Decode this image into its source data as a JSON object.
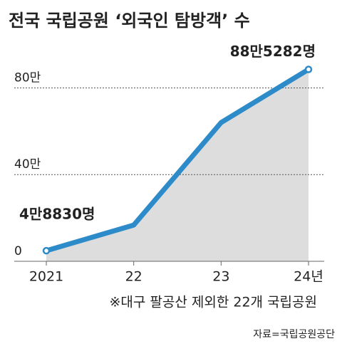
{
  "chart_data": {
    "type": "line",
    "title": "전국 국립공원 ‘외국인 탐방객’ 수",
    "note": "※대구 팔공산 제외한 22개 국립공원",
    "source": "자료=국립공원공단",
    "categories": [
      "2021",
      "22",
      "23",
      "24년"
    ],
    "values": [
      48830,
      167000,
      640000,
      885282
    ],
    "value_labels": [
      "4만8830명",
      null,
      null,
      "88만5282명"
    ],
    "color": "#2e8bc9",
    "area_color": "#dddddd",
    "ylim": [
      0,
      900000
    ],
    "yticks": [
      0,
      {
        "value": 400000,
        "label": "40만"
      },
      {
        "value": 800000,
        "label": "80만"
      }
    ],
    "grid": true
  }
}
